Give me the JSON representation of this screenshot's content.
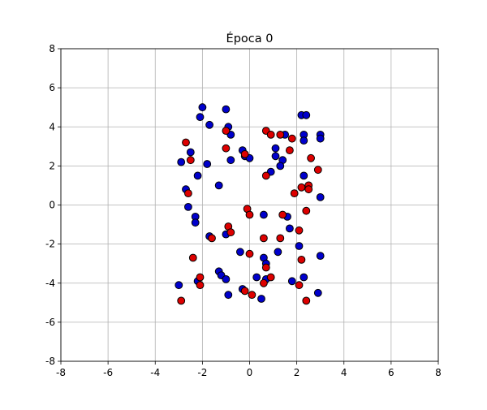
{
  "chart_data": {
    "type": "scatter",
    "title": "Época 0",
    "xlabel": "",
    "ylabel": "",
    "xlim": [
      -8,
      8
    ],
    "ylim": [
      -8,
      8
    ],
    "x_ticks": [
      "-8",
      "-6",
      "-4",
      "-2",
      "0",
      "2",
      "4",
      "6",
      "8"
    ],
    "y_ticks": [
      "-8",
      "-6",
      "-4",
      "-2",
      "0",
      "2",
      "4",
      "6",
      "8"
    ],
    "grid": true,
    "legend": "none",
    "series": [
      {
        "color": "#0000cc",
        "points": [
          [
            -2.0,
            5.0
          ],
          [
            -1.0,
            4.9
          ],
          [
            -2.1,
            4.5
          ],
          [
            -1.7,
            4.1
          ],
          [
            -0.9,
            4.0
          ],
          [
            -0.8,
            3.6
          ],
          [
            2.2,
            4.6
          ],
          [
            2.4,
            4.6
          ],
          [
            1.5,
            3.6
          ],
          [
            2.3,
            3.6
          ],
          [
            3.0,
            3.6
          ],
          [
            2.3,
            3.3
          ],
          [
            3.0,
            3.4
          ],
          [
            -2.5,
            2.7
          ],
          [
            -0.3,
            2.8
          ],
          [
            -0.2,
            2.5
          ],
          [
            0.0,
            2.4
          ],
          [
            1.1,
            2.9
          ],
          [
            1.1,
            2.5
          ],
          [
            1.4,
            2.3
          ],
          [
            1.3,
            2.0
          ],
          [
            0.9,
            1.7
          ],
          [
            -2.9,
            2.2
          ],
          [
            -1.8,
            2.1
          ],
          [
            -0.8,
            2.3
          ],
          [
            -2.2,
            1.5
          ],
          [
            -1.3,
            1.0
          ],
          [
            -2.7,
            0.8
          ],
          [
            2.3,
            1.5
          ],
          [
            3.0,
            0.4
          ],
          [
            -2.6,
            -0.1
          ],
          [
            -2.3,
            -0.6
          ],
          [
            -2.3,
            -0.9
          ],
          [
            0.6,
            -0.5
          ],
          [
            1.6,
            -0.6
          ],
          [
            -1.0,
            -1.5
          ],
          [
            -1.7,
            -1.6
          ],
          [
            1.7,
            -1.2
          ],
          [
            -0.4,
            -2.4
          ],
          [
            1.2,
            -2.4
          ],
          [
            2.1,
            -2.1
          ],
          [
            3.0,
            -2.6
          ],
          [
            0.6,
            -2.7
          ],
          [
            0.7,
            -3.0
          ],
          [
            -1.3,
            -3.4
          ],
          [
            -1.2,
            -3.6
          ],
          [
            -1.0,
            -3.8
          ],
          [
            -2.2,
            -3.9
          ],
          [
            -3.0,
            -4.1
          ],
          [
            0.3,
            -3.7
          ],
          [
            0.7,
            -3.8
          ],
          [
            1.8,
            -3.9
          ],
          [
            2.3,
            -3.7
          ],
          [
            -0.3,
            -4.3
          ],
          [
            -0.9,
            -4.6
          ],
          [
            0.5,
            -4.8
          ],
          [
            2.9,
            -4.5
          ]
        ]
      },
      {
        "color": "#dd0000",
        "points": [
          [
            -2.7,
            3.2
          ],
          [
            -1.0,
            3.8
          ],
          [
            -0.2,
            2.6
          ],
          [
            -2.5,
            2.3
          ],
          [
            -1.0,
            2.9
          ],
          [
            0.7,
            3.8
          ],
          [
            0.9,
            3.6
          ],
          [
            1.3,
            3.6
          ],
          [
            1.8,
            3.4
          ],
          [
            1.7,
            2.8
          ],
          [
            2.6,
            2.4
          ],
          [
            2.9,
            1.8
          ],
          [
            0.7,
            1.5
          ],
          [
            2.2,
            0.9
          ],
          [
            2.5,
            1.0
          ],
          [
            2.5,
            0.8
          ],
          [
            1.9,
            0.6
          ],
          [
            -2.6,
            0.6
          ],
          [
            -0.1,
            -0.2
          ],
          [
            0.0,
            -0.5
          ],
          [
            1.4,
            -0.5
          ],
          [
            2.4,
            -0.3
          ],
          [
            -0.9,
            -1.1
          ],
          [
            -0.8,
            -1.4
          ],
          [
            -1.6,
            -1.7
          ],
          [
            0.6,
            -1.7
          ],
          [
            1.3,
            -1.7
          ],
          [
            2.1,
            -1.3
          ],
          [
            -2.4,
            -2.7
          ],
          [
            0.0,
            -2.5
          ],
          [
            2.2,
            -2.8
          ],
          [
            0.7,
            -3.2
          ],
          [
            -2.1,
            -3.7
          ],
          [
            -2.1,
            -4.1
          ],
          [
            0.9,
            -3.7
          ],
          [
            2.1,
            -4.1
          ],
          [
            -0.2,
            -4.4
          ],
          [
            0.1,
            -4.6
          ],
          [
            0.6,
            -4.0
          ],
          [
            -2.9,
            -4.9
          ],
          [
            2.4,
            -4.9
          ]
        ]
      }
    ]
  }
}
